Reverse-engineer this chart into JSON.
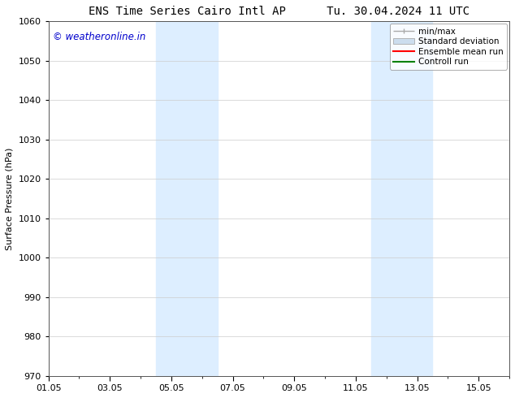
{
  "title_left": "ENS Time Series Cairo Intl AP",
  "title_right": "Tu. 30.04.2024 11 UTC",
  "ylabel": "Surface Pressure (hPa)",
  "ylim": [
    970,
    1060
  ],
  "yticks": [
    970,
    980,
    990,
    1000,
    1010,
    1020,
    1030,
    1040,
    1050,
    1060
  ],
  "xtick_labels": [
    "01.05",
    "03.05",
    "05.05",
    "07.05",
    "09.05",
    "11.05",
    "13.05",
    "15.05"
  ],
  "xtick_positions": [
    0,
    2,
    4,
    6,
    8,
    10,
    12,
    14
  ],
  "x_min": 0,
  "x_max": 15,
  "shaded_bands": [
    {
      "x_start": 3.5,
      "x_end": 5.5,
      "color": "#ddeeff"
    },
    {
      "x_start": 10.5,
      "x_end": 12.5,
      "color": "#ddeeff"
    }
  ],
  "watermark_text": "© weatheronline.in",
  "watermark_color": "#0000cc",
  "watermark_fontsize": 8.5,
  "bg_color": "#ffffff",
  "grid_color": "#cccccc",
  "title_fontsize": 10,
  "axis_fontsize": 8,
  "tick_fontsize": 8,
  "legend_fontsize": 7.5,
  "minmax_color": "#aaaaaa",
  "std_facecolor": "#ccddee",
  "std_edgecolor": "#aaaaaa",
  "ensemble_color": "#ff0000",
  "control_color": "#008000"
}
